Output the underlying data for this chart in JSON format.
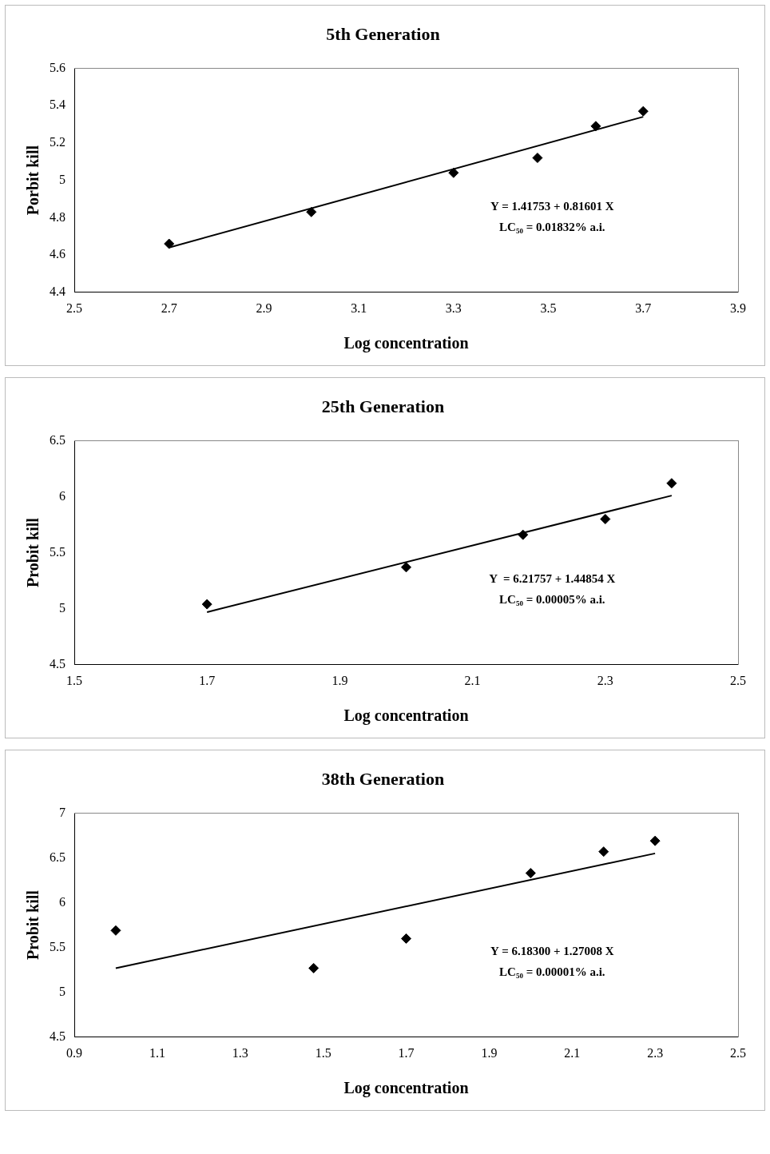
{
  "chart_data": [
    {
      "type": "scatter",
      "title": "5th Generation",
      "xlabel": "Log concentration",
      "ylabel": "Porbit kill",
      "xlim": [
        2.5,
        3.9
      ],
      "xticks": [
        2.5,
        2.7,
        2.9,
        3.1,
        3.3,
        3.5,
        3.7,
        3.9
      ],
      "ylim": [
        4.4,
        5.6
      ],
      "yticks": [
        4.4,
        4.6,
        4.8,
        5,
        5.2,
        5.4,
        5.6
      ],
      "grid": false,
      "legend": false,
      "series": [
        {
          "marker": "diamond",
          "color": "#000000",
          "x": [
            2.7,
            3.0,
            3.3,
            3.477,
            3.6,
            3.7
          ],
          "values": [
            4.66,
            4.83,
            5.04,
            5.12,
            5.29,
            5.37
          ]
        },
        {
          "type": "line",
          "marker": "none",
          "color": "#000000",
          "x": [
            2.7,
            3.7
          ],
          "values": [
            4.64,
            5.34
          ]
        }
      ],
      "annotations": [
        "Y = 1.41753 + 0.81601 X",
        "LC₅₀ = 0.01832% a.i."
      ]
    },
    {
      "type": "scatter",
      "title": "25th Generation",
      "xlabel": "Log concentration",
      "ylabel": "Probit kill",
      "xlim": [
        1.5,
        2.5
      ],
      "xticks": [
        1.5,
        1.7,
        1.9,
        2.1,
        2.3,
        2.5
      ],
      "ylim": [
        4.5,
        6.5
      ],
      "yticks": [
        4.5,
        5,
        5.5,
        6,
        6.5
      ],
      "grid": false,
      "legend": false,
      "series": [
        {
          "marker": "diamond",
          "color": "#000000",
          "x": [
            1.7,
            2.0,
            2.176,
            2.3,
            2.4
          ],
          "values": [
            5.04,
            5.37,
            5.66,
            5.8,
            6.12
          ]
        },
        {
          "type": "line",
          "marker": "none",
          "color": "#000000",
          "x": [
            1.7,
            2.4
          ],
          "values": [
            4.97,
            6.01
          ]
        }
      ],
      "annotations": [
        "Y  = 6.21757 + 1.44854 X",
        "LC₅₀ = 0.00005% a.i."
      ]
    },
    {
      "type": "scatter",
      "title": "38th Generation",
      "xlabel": "Log concentration",
      "ylabel": "Probit kill",
      "xlim": [
        0.9,
        2.5
      ],
      "xticks": [
        0.9,
        1.1,
        1.3,
        1.5,
        1.7,
        1.9,
        2.1,
        2.3,
        2.5
      ],
      "ylim": [
        4.5,
        7
      ],
      "yticks": [
        4.5,
        5,
        5.5,
        6,
        6.5,
        7
      ],
      "grid": false,
      "legend": false,
      "series": [
        {
          "marker": "diamond",
          "color": "#000000",
          "x": [
            1.0,
            1.477,
            1.7,
            2.0,
            2.176,
            2.3
          ],
          "values": [
            5.69,
            5.27,
            5.6,
            6.33,
            6.57,
            6.69
          ]
        },
        {
          "type": "line",
          "marker": "none",
          "color": "#000000",
          "x": [
            1.0,
            2.3
          ],
          "values": [
            5.27,
            6.55
          ]
        }
      ],
      "annotations": [
        "Y = 6.18300 + 1.27008 X",
        "LC₅₀ = 0.00001% a.i."
      ]
    }
  ]
}
